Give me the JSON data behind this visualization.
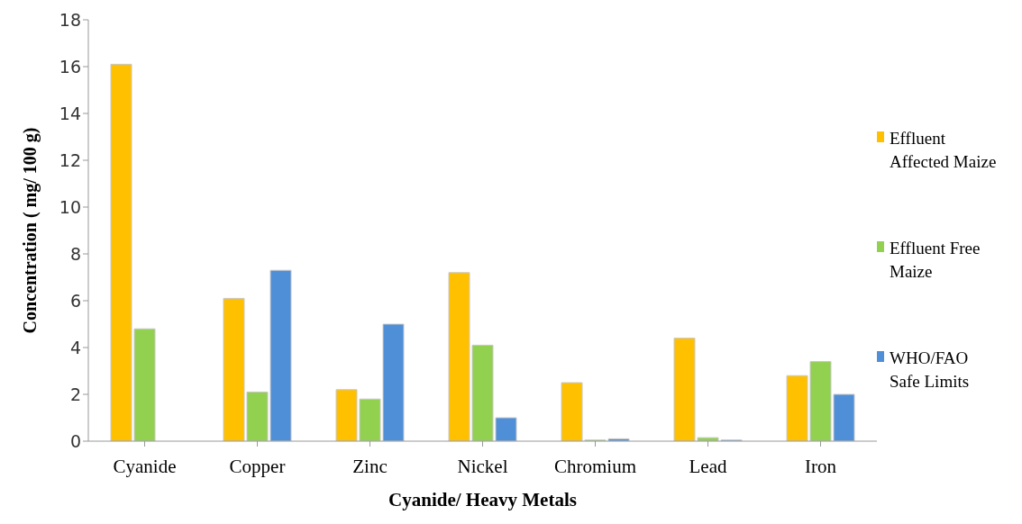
{
  "chart_data": {
    "type": "bar",
    "xlabel": "Cyanide/ Heavy Metals",
    "ylabel": "Concentration ( mg/ 100 g)",
    "categories": [
      "Cyanide",
      "Copper",
      "Zinc",
      "Nickel",
      "Chromium",
      "Lead",
      "Iron"
    ],
    "series": [
      {
        "name": "Effluent Affected Maize",
        "color": "#ffc000",
        "values": [
          16.1,
          6.1,
          2.2,
          7.2,
          2.5,
          4.4,
          2.8
        ]
      },
      {
        "name": "Effluent Free Maize",
        "color": "#92d050",
        "values": [
          4.8,
          2.1,
          1.8,
          4.1,
          0.05,
          0.15,
          3.4
        ]
      },
      {
        "name": "WHO/FAO Safe Limits",
        "color": "#4f8fd8",
        "values": [
          null,
          7.3,
          5.0,
          1.0,
          0.1,
          0.05,
          2.0
        ]
      }
    ],
    "ylim": [
      0,
      18
    ],
    "yticks": [
      0,
      2,
      4,
      6,
      8,
      10,
      12,
      14,
      16,
      18
    ],
    "grid": false,
    "legend": "right"
  }
}
